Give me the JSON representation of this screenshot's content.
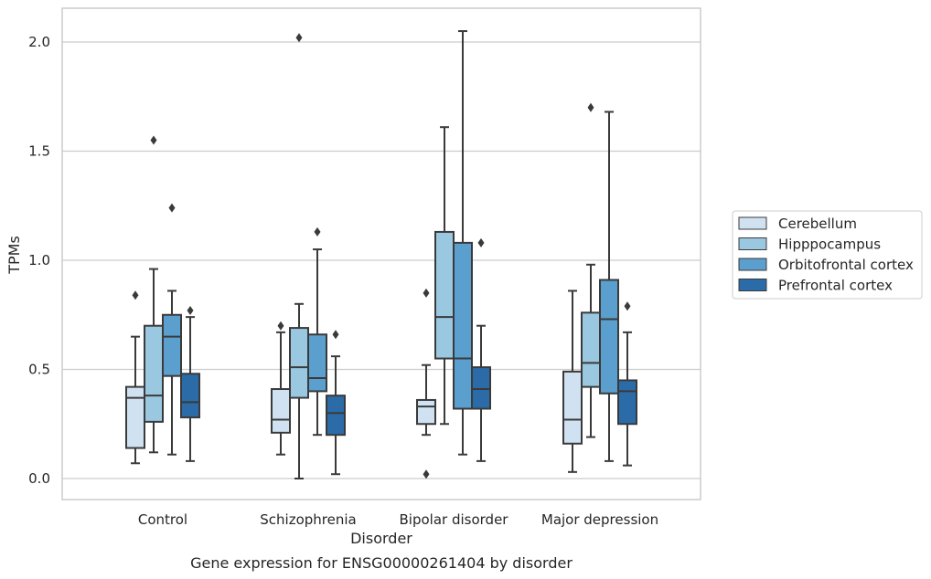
{
  "chart_data": {
    "type": "box",
    "title": "",
    "caption": "Gene expression for ENSG00000261404 by disorder",
    "xlabel": "Disorder",
    "ylabel": "TPMs",
    "ylim": [
      -0.1,
      2.16
    ],
    "yticks": [
      0.0,
      0.5,
      1.0,
      1.5,
      2.0
    ],
    "ytick_labels": [
      "0.0",
      "0.5",
      "1.0",
      "1.5",
      "2.0"
    ],
    "grid": true,
    "legend_position": "right",
    "categories": [
      "Control",
      "Schizophrenia",
      "Bipolar disorder",
      "Major depression"
    ],
    "series": [
      {
        "name": "Cerebellum",
        "color": "#d0e1f2",
        "boxes": [
          {
            "whislo": 0.07,
            "q1": 0.14,
            "med": 0.37,
            "q3": 0.42,
            "whishi": 0.65,
            "fliers": [
              0.84
            ]
          },
          {
            "whislo": 0.11,
            "q1": 0.21,
            "med": 0.27,
            "q3": 0.41,
            "whishi": 0.67,
            "fliers": [
              0.7
            ]
          },
          {
            "whislo": 0.2,
            "q1": 0.25,
            "med": 0.33,
            "q3": 0.36,
            "whishi": 0.52,
            "fliers": [
              0.85,
              0.02
            ]
          },
          {
            "whislo": 0.03,
            "q1": 0.16,
            "med": 0.27,
            "q3": 0.49,
            "whishi": 0.86,
            "fliers": []
          }
        ]
      },
      {
        "name": "Hipppocampus",
        "color": "#9ac8e0",
        "boxes": [
          {
            "whislo": 0.12,
            "q1": 0.26,
            "med": 0.38,
            "q3": 0.7,
            "whishi": 0.96,
            "fliers": [
              1.55
            ]
          },
          {
            "whislo": 0.0,
            "q1": 0.37,
            "med": 0.51,
            "q3": 0.69,
            "whishi": 0.8,
            "fliers": [
              2.02
            ]
          },
          {
            "whislo": 0.25,
            "q1": 0.55,
            "med": 0.74,
            "q3": 1.13,
            "whishi": 1.61,
            "fliers": []
          },
          {
            "whislo": 0.19,
            "q1": 0.42,
            "med": 0.53,
            "q3": 0.76,
            "whishi": 0.98,
            "fliers": [
              1.7
            ]
          }
        ]
      },
      {
        "name": "Orbitofrontal cortex",
        "color": "#5a9fcd",
        "boxes": [
          {
            "whislo": 0.11,
            "q1": 0.47,
            "med": 0.65,
            "q3": 0.75,
            "whishi": 0.86,
            "fliers": [
              1.24
            ]
          },
          {
            "whislo": 0.2,
            "q1": 0.4,
            "med": 0.46,
            "q3": 0.66,
            "whishi": 1.05,
            "fliers": [
              1.13
            ]
          },
          {
            "whislo": 0.11,
            "q1": 0.32,
            "med": 0.55,
            "q3": 1.08,
            "whishi": 2.05,
            "fliers": []
          },
          {
            "whislo": 0.08,
            "q1": 0.39,
            "med": 0.73,
            "q3": 0.91,
            "whishi": 1.68,
            "fliers": []
          }
        ]
      },
      {
        "name": "Prefrontal cortex",
        "color": "#2b6ca8",
        "boxes": [
          {
            "whislo": 0.08,
            "q1": 0.28,
            "med": 0.35,
            "q3": 0.48,
            "whishi": 0.74,
            "fliers": [
              0.77
            ]
          },
          {
            "whislo": 0.02,
            "q1": 0.2,
            "med": 0.3,
            "q3": 0.38,
            "whishi": 0.56,
            "fliers": [
              0.66
            ]
          },
          {
            "whislo": 0.08,
            "q1": 0.32,
            "med": 0.41,
            "q3": 0.51,
            "whishi": 0.7,
            "fliers": [
              1.08
            ]
          },
          {
            "whislo": 0.06,
            "q1": 0.25,
            "med": 0.4,
            "q3": 0.45,
            "whishi": 0.67,
            "fliers": [
              0.79
            ]
          }
        ]
      }
    ]
  }
}
